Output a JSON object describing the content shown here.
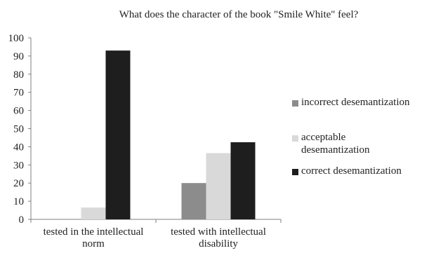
{
  "chart_data": {
    "type": "bar",
    "title": "What does the character of the book \"Smile White\" feel?",
    "xlabel": "",
    "ylabel": "",
    "ylim": [
      0,
      100
    ],
    "yticks": [
      0,
      10,
      20,
      30,
      40,
      50,
      60,
      70,
      80,
      90,
      100
    ],
    "categories": [
      [
        "tested in the intellectual",
        "norm"
      ],
      [
        "tested with intellectual",
        "disability"
      ]
    ],
    "series": [
      {
        "name": "incorrect desemantization",
        "color": "#8c8c8c",
        "values": [
          0,
          20
        ]
      },
      {
        "name": "acceptable desemantization",
        "color": "#d9d9d9",
        "values": [
          6.5,
          36.5
        ]
      },
      {
        "name": "correct desemantization",
        "color": "#1e1e1e",
        "values": [
          93,
          42.5
        ]
      }
    ],
    "grid": false,
    "legend_position": "right"
  }
}
